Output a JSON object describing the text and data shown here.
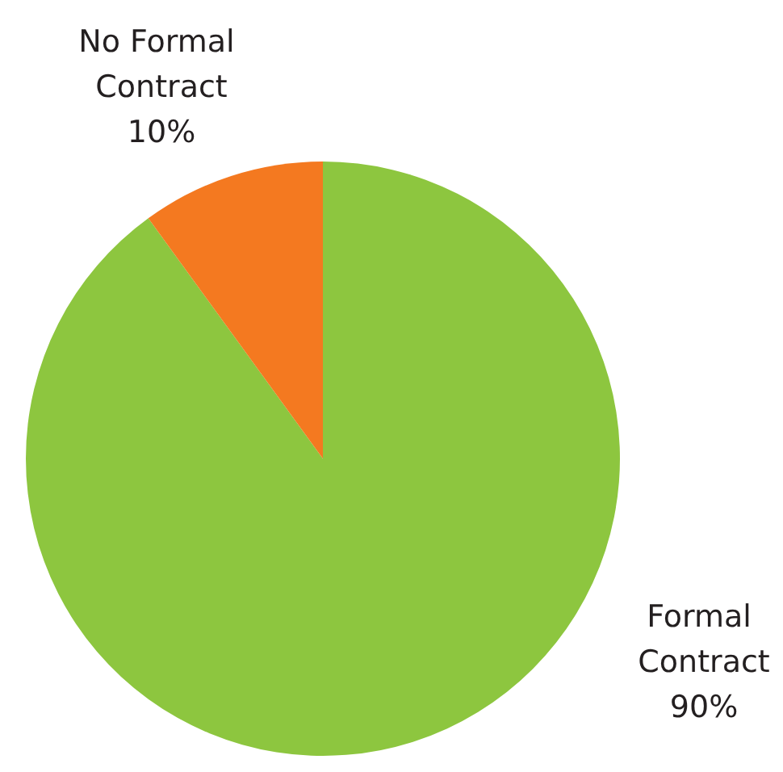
{
  "chart_data": {
    "type": "pie",
    "categories": [
      "Formal Contract",
      "No Formal Contract"
    ],
    "values": [
      90,
      10
    ],
    "value_labels": [
      "90%",
      "10%"
    ],
    "colors": [
      "#8dc63f",
      "#f47920"
    ],
    "legend": false
  }
}
